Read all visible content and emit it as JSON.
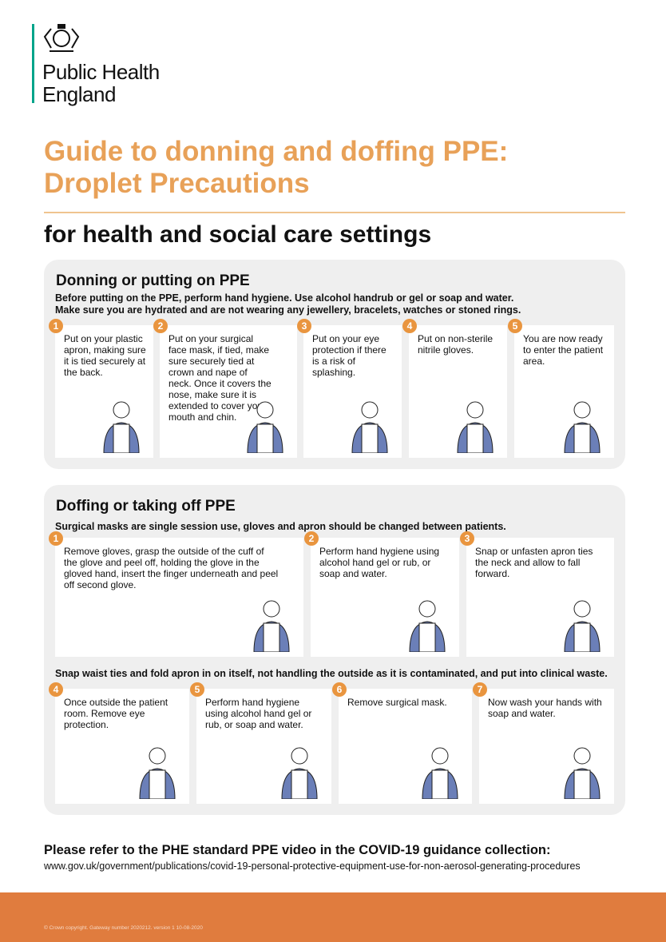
{
  "header": {
    "org_line1": "Public Health",
    "org_line2": "England",
    "title_line1": "Guide to donning and doffing PPE:",
    "title_line2": "Droplet Precautions",
    "subtitle": "for health and social care settings"
  },
  "donning": {
    "heading": "Donning or putting on PPE",
    "intro1": "Before putting on the PPE, perform hand hygiene. Use alcohol handrub or gel or soap and water.",
    "intro2": "Make sure you are hydrated and are not wearing any jewellery, bracelets, watches or stoned rings.",
    "steps": [
      {
        "n": "1",
        "text": "Put on your plastic apron, making sure it is tied securely at the back."
      },
      {
        "n": "2",
        "text": "Put on your surgical face mask, if tied, make sure securely tied at crown and nape of neck. Once it covers the nose, make sure it is extended to cover your mouth and chin."
      },
      {
        "n": "3",
        "text": "Put on your eye protection if there is a risk of splashing."
      },
      {
        "n": "4",
        "text": "Put on non-sterile nitrile gloves."
      },
      {
        "n": "5",
        "text": "You are now ready to enter the patient area."
      }
    ]
  },
  "doffing": {
    "heading": "Doffing or taking off PPE",
    "intro": "Surgical masks are single session use, gloves and apron should be changed between patients.",
    "mid_note": "Snap waist ties and fold apron in on itself, not handling the outside as it is contaminated, and put into clinical waste.",
    "steps": [
      {
        "n": "1",
        "text": "Remove gloves, grasp the outside of the cuff of the glove and peel off, holding the glove in the gloved hand, insert the finger underneath and peel off second glove."
      },
      {
        "n": "2",
        "text": "Perform hand hygiene using alcohol hand gel or rub, or soap and water."
      },
      {
        "n": "3",
        "text": "Snap or unfasten apron ties the neck and allow to fall forward."
      },
      {
        "n": "4",
        "text": "Once outside the patient room. Remove eye protection."
      },
      {
        "n": "5",
        "text": "Perform hand hygiene using alcohol hand gel or rub, or soap and water."
      },
      {
        "n": "6",
        "text": "Remove surgical mask."
      },
      {
        "n": "7",
        "text": "Now wash your hands with soap and water."
      }
    ]
  },
  "footer": {
    "refer": "Please refer to the PHE standard PPE video in the COVID-19 guidance collection:",
    "url": "www.gov.uk/government/publications/covid-19-personal-protective-equipment-use-for-non-aerosol-generating-procedures",
    "copyright": "© Crown copyright. Gateway number 2020212. version 1 10-08-2020"
  },
  "colors": {
    "accent": "#e8a158",
    "badge": "#e9953f",
    "footer": "#e07c3e",
    "logo_bar": "#00a48a",
    "scrubs": "#6b7fb8"
  }
}
